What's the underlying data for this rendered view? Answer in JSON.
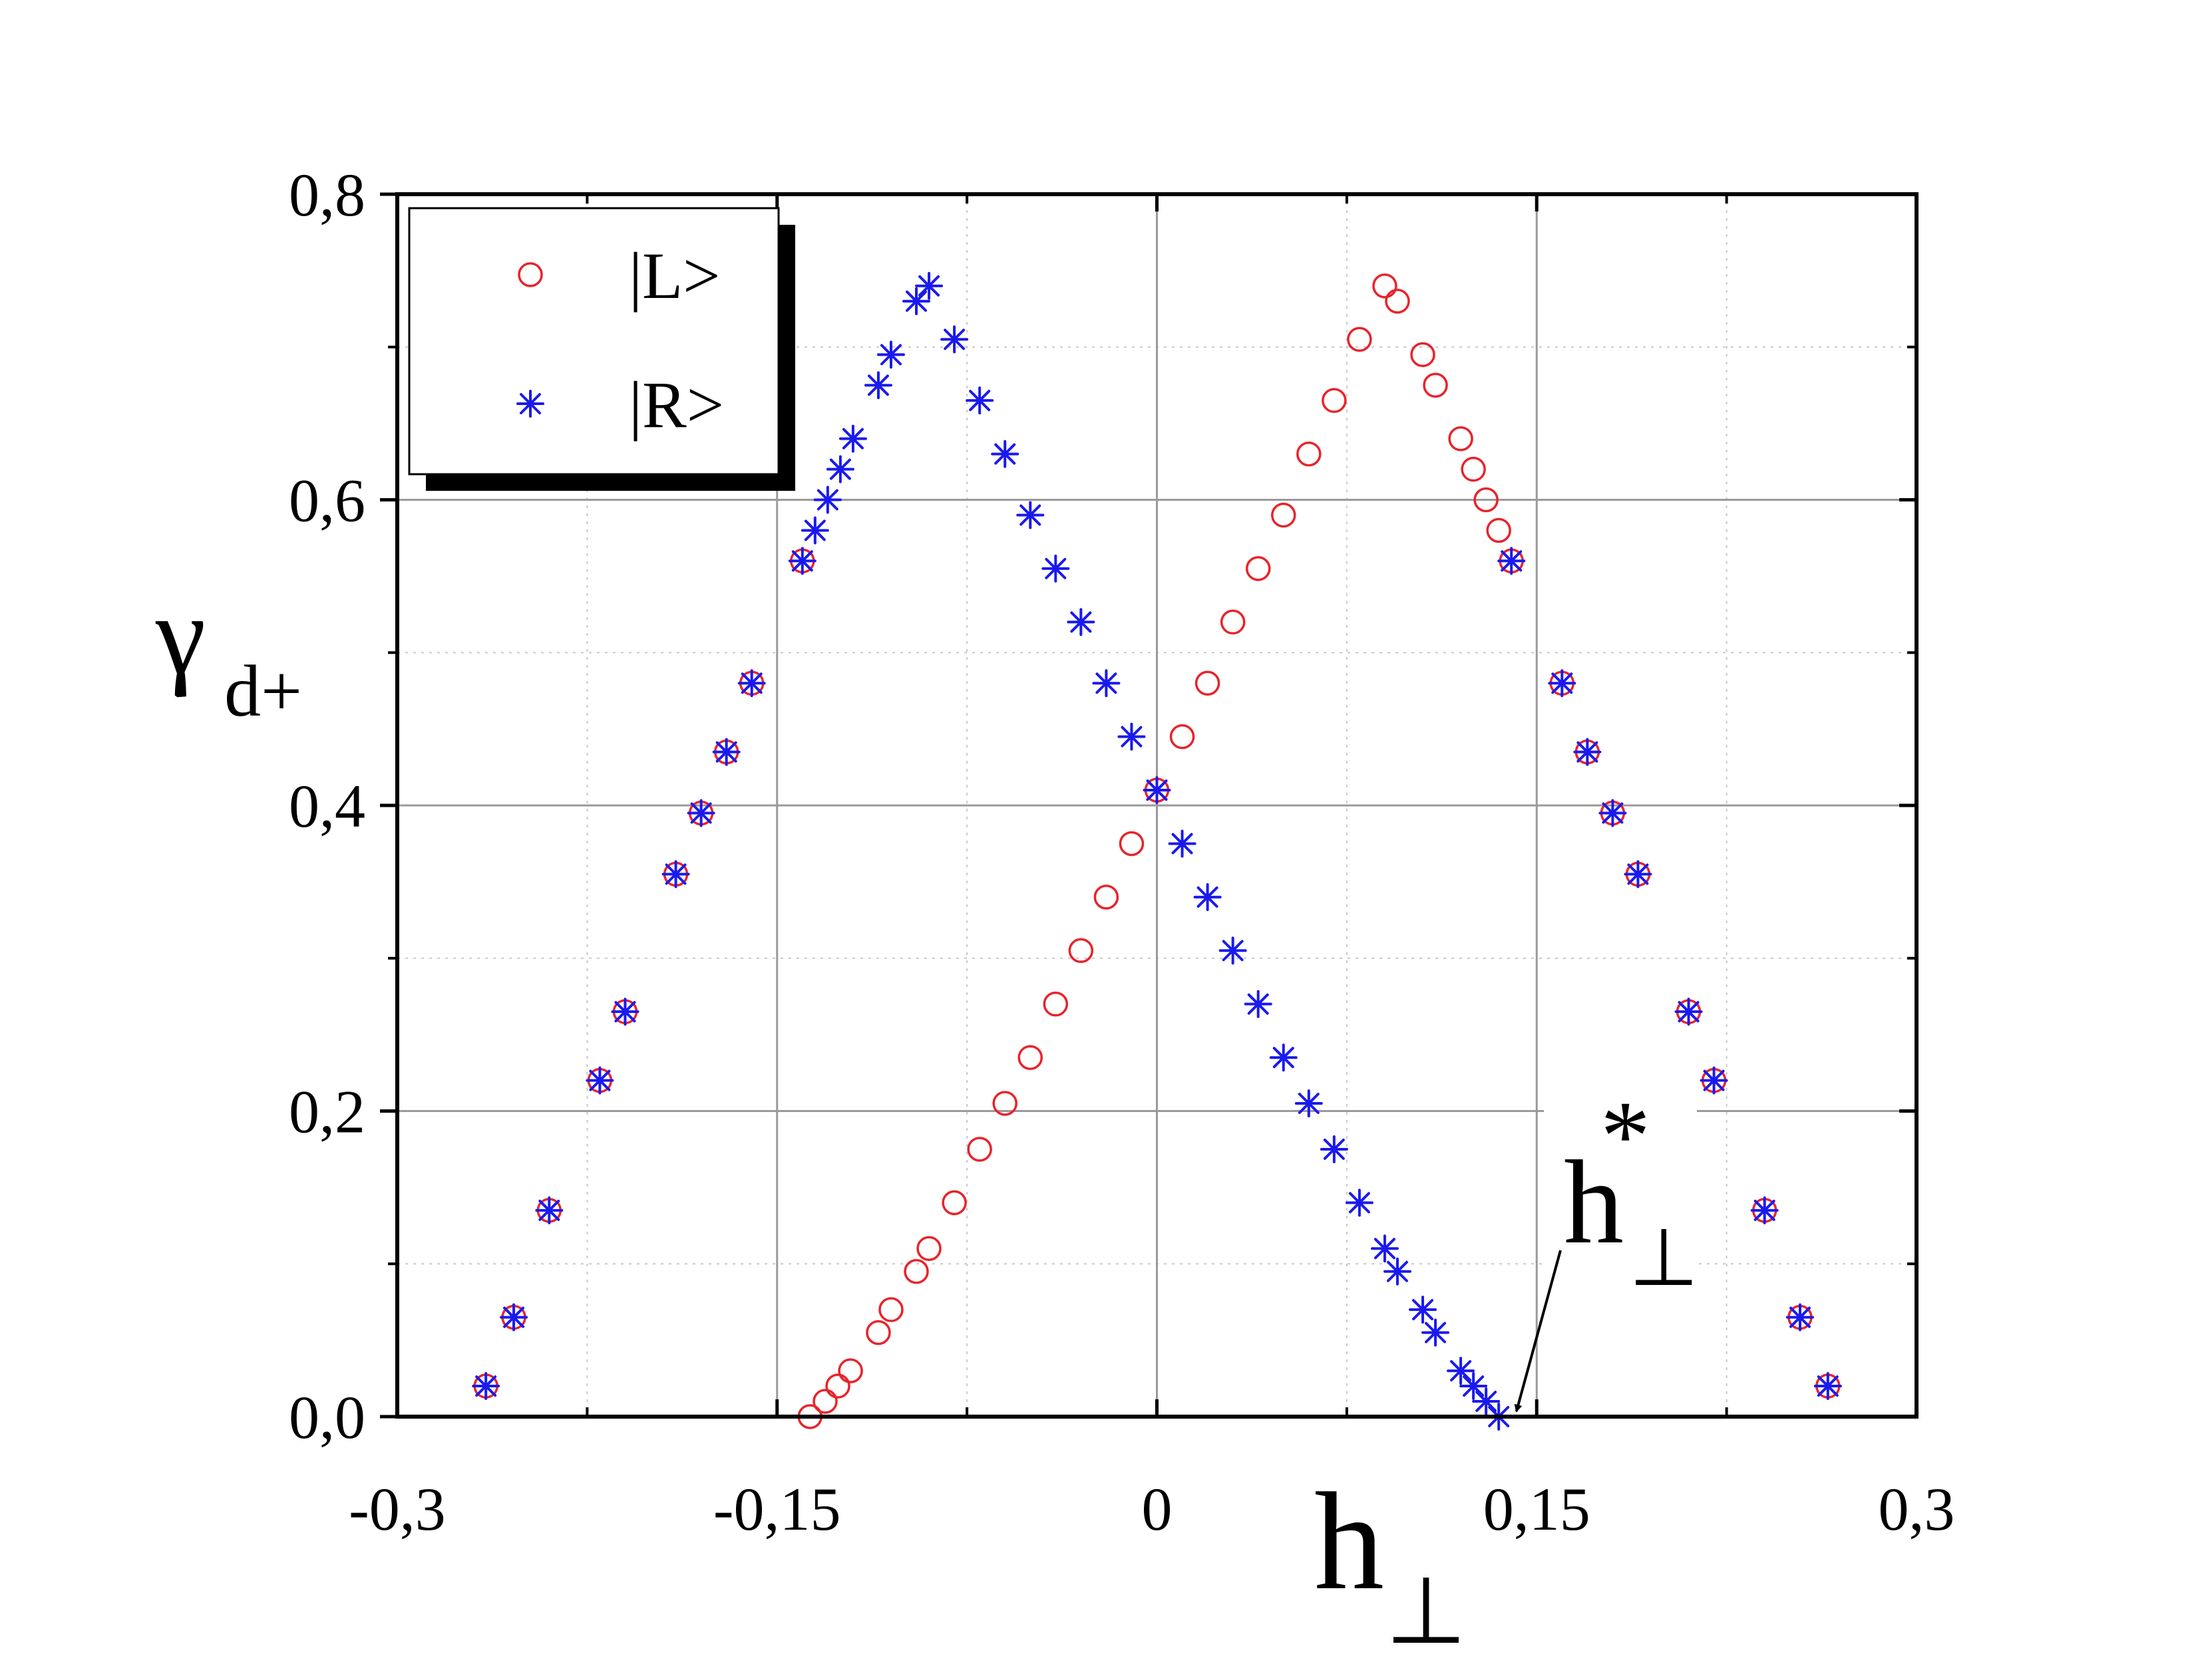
{
  "chart_data": {
    "type": "scatter",
    "xlabel": "h",
    "xlabel_sub": "⊥",
    "ylabel": "γ",
    "ylabel_sub": "d+",
    "xlim": [
      -0.3,
      0.3
    ],
    "ylim": [
      0.0,
      0.8
    ],
    "x_ticks": [
      {
        "value": -0.3,
        "label": "-0,3"
      },
      {
        "value": -0.15,
        "label": "-0,15"
      },
      {
        "value": 0,
        "label": "0"
      },
      {
        "value": 0.15,
        "label": "0,15"
      },
      {
        "value": 0.3,
        "label": "0,3"
      }
    ],
    "y_ticks": [
      {
        "value": 0.0,
        "label": "0,0"
      },
      {
        "value": 0.2,
        "label": "0,2"
      },
      {
        "value": 0.4,
        "label": "0,4"
      },
      {
        "value": 0.6,
        "label": "0,6"
      },
      {
        "value": 0.8,
        "label": "0,8"
      }
    ],
    "grid": true,
    "legend_position": "top-left",
    "series": [
      {
        "name": "|L>",
        "marker": "circle",
        "color": "#e8232a",
        "points": [
          [
            -0.265,
            0.02
          ],
          [
            -0.254,
            0.065
          ],
          [
            -0.24,
            0.135
          ],
          [
            -0.22,
            0.22
          ],
          [
            -0.21,
            0.265
          ],
          [
            -0.19,
            0.355
          ],
          [
            -0.18,
            0.395
          ],
          [
            -0.17,
            0.435
          ],
          [
            -0.16,
            0.48
          ],
          [
            -0.14,
            0.56
          ],
          [
            -0.137,
            0.0
          ],
          [
            -0.131,
            0.01
          ],
          [
            -0.126,
            0.02
          ],
          [
            -0.121,
            0.03
          ],
          [
            -0.11,
            0.055
          ],
          [
            -0.105,
            0.07
          ],
          [
            -0.095,
            0.095
          ],
          [
            -0.09,
            0.11
          ],
          [
            -0.08,
            0.14
          ],
          [
            -0.07,
            0.175
          ],
          [
            -0.06,
            0.205
          ],
          [
            -0.05,
            0.235
          ],
          [
            -0.04,
            0.27
          ],
          [
            -0.03,
            0.305
          ],
          [
            -0.02,
            0.34
          ],
          [
            -0.01,
            0.375
          ],
          [
            0.0,
            0.41
          ],
          [
            0.01,
            0.445
          ],
          [
            0.02,
            0.48
          ],
          [
            0.03,
            0.52
          ],
          [
            0.04,
            0.555
          ],
          [
            0.05,
            0.59
          ],
          [
            0.06,
            0.63
          ],
          [
            0.07,
            0.665
          ],
          [
            0.08,
            0.705
          ],
          [
            0.09,
            0.74
          ],
          [
            0.095,
            0.73
          ],
          [
            0.105,
            0.695
          ],
          [
            0.11,
            0.675
          ],
          [
            0.12,
            0.64
          ],
          [
            0.125,
            0.62
          ],
          [
            0.13,
            0.6
          ],
          [
            0.135,
            0.58
          ],
          [
            0.14,
            0.56
          ],
          [
            0.16,
            0.48
          ],
          [
            0.17,
            0.435
          ],
          [
            0.18,
            0.395
          ],
          [
            0.19,
            0.355
          ],
          [
            0.21,
            0.265
          ],
          [
            0.22,
            0.22
          ],
          [
            0.24,
            0.135
          ],
          [
            0.254,
            0.065
          ],
          [
            0.265,
            0.02
          ]
        ]
      },
      {
        "name": "|R>",
        "marker": "asterisk",
        "color": "#1a1aee",
        "points": [
          [
            -0.265,
            0.02
          ],
          [
            -0.254,
            0.065
          ],
          [
            -0.24,
            0.135
          ],
          [
            -0.22,
            0.22
          ],
          [
            -0.21,
            0.265
          ],
          [
            -0.19,
            0.355
          ],
          [
            -0.18,
            0.395
          ],
          [
            -0.17,
            0.435
          ],
          [
            -0.16,
            0.48
          ],
          [
            -0.14,
            0.56
          ],
          [
            -0.135,
            0.58
          ],
          [
            -0.13,
            0.6
          ],
          [
            -0.125,
            0.62
          ],
          [
            -0.12,
            0.64
          ],
          [
            -0.11,
            0.675
          ],
          [
            -0.105,
            0.695
          ],
          [
            -0.095,
            0.73
          ],
          [
            -0.09,
            0.74
          ],
          [
            -0.08,
            0.705
          ],
          [
            -0.07,
            0.665
          ],
          [
            -0.06,
            0.63
          ],
          [
            -0.05,
            0.59
          ],
          [
            -0.04,
            0.555
          ],
          [
            -0.03,
            0.52
          ],
          [
            -0.02,
            0.48
          ],
          [
            -0.01,
            0.445
          ],
          [
            0.0,
            0.41
          ],
          [
            0.01,
            0.375
          ],
          [
            0.02,
            0.34
          ],
          [
            0.03,
            0.305
          ],
          [
            0.04,
            0.27
          ],
          [
            0.05,
            0.235
          ],
          [
            0.06,
            0.205
          ],
          [
            0.07,
            0.175
          ],
          [
            0.08,
            0.14
          ],
          [
            0.09,
            0.11
          ],
          [
            0.095,
            0.095
          ],
          [
            0.105,
            0.07
          ],
          [
            0.11,
            0.055
          ],
          [
            0.12,
            0.03
          ],
          [
            0.125,
            0.02
          ],
          [
            0.13,
            0.01
          ],
          [
            0.135,
            0.0
          ],
          [
            0.14,
            0.56
          ],
          [
            0.16,
            0.48
          ],
          [
            0.17,
            0.435
          ],
          [
            0.18,
            0.395
          ],
          [
            0.19,
            0.355
          ],
          [
            0.21,
            0.265
          ],
          [
            0.22,
            0.22
          ],
          [
            0.24,
            0.135
          ],
          [
            0.254,
            0.065
          ],
          [
            0.265,
            0.02
          ]
        ]
      }
    ],
    "annotations": [
      {
        "text": "h",
        "superscript": "*",
        "subscript": "⊥",
        "x": 0.142,
        "y": 0.0
      }
    ]
  }
}
